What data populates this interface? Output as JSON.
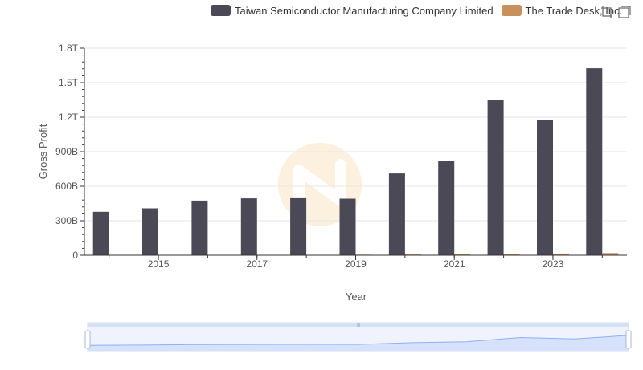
{
  "chart_data": {
    "type": "bar",
    "title": "",
    "xlabel": "Year",
    "ylabel": "Gross Profit",
    "x": [
      2014,
      2015,
      2016,
      2017,
      2018,
      2019,
      2020,
      2021,
      2022,
      2023,
      2024
    ],
    "x_tick_labels": [
      "2015",
      "2017",
      "2019",
      "2021",
      "2023"
    ],
    "x_tick_values": [
      2015,
      2017,
      2019,
      2021,
      2023
    ],
    "y_tick_labels": [
      "0",
      "300B",
      "600B",
      "900B",
      "1.2T",
      "1.5T",
      "1.8T"
    ],
    "y_tick_values": [
      0,
      300,
      600,
      900,
      1200,
      1500,
      1800
    ],
    "ylim": [
      0,
      1800
    ],
    "units": "billions",
    "grid": true,
    "legend_position": "top",
    "series": [
      {
        "name": "Taiwan Semiconductor Manufacturing Company Limited",
        "color": "#4a4955",
        "values": [
          378,
          408,
          475,
          495,
          496,
          492,
          711,
          820,
          1350,
          1175,
          1625
        ]
      },
      {
        "name": "The Trade Desk, Inc.",
        "color": "#c8905a",
        "values": [
          0.7,
          1.8,
          2.0,
          3.0,
          3.6,
          5.0,
          6.6,
          9.0,
          12.0,
          15.0,
          19.0
        ]
      }
    ]
  },
  "colors": {
    "axis": "#333333",
    "grid": "#e6e6e6",
    "tick_text": "#555555",
    "zoom_fill": "#d6e2fb",
    "zoom_line": "#8fb0f7",
    "watermark": "#f5c98c"
  },
  "toolbox": {
    "icons": [
      "zoom-icon",
      "restore-icon"
    ]
  }
}
